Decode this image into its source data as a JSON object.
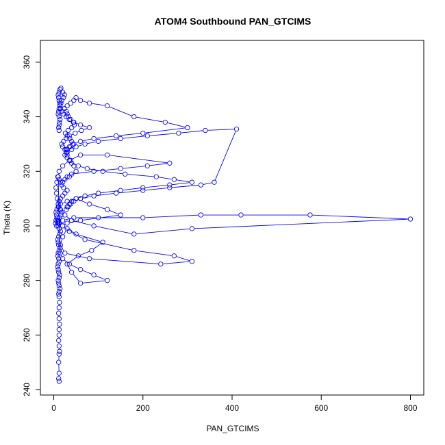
{
  "chart_data": {
    "type": "scatter",
    "title": "ATOM4 Southbound PAN_GTCIMS",
    "xlabel": "PAN_GTCIMS",
    "ylabel": "Theta (K)",
    "xlim": [
      -30,
      830
    ],
    "ylim": [
      238,
      368
    ],
    "x_ticks": [
      0,
      200,
      400,
      600,
      800
    ],
    "y_ticks": [
      240,
      260,
      280,
      300,
      320,
      340,
      360
    ],
    "x_tick_labels": [
      "0",
      "200",
      "400",
      "600",
      "800"
    ],
    "y_tick_labels": [
      "240",
      "260",
      "280",
      "300",
      "320",
      "340",
      "360"
    ],
    "grid": false,
    "legend": "none",
    "series_color": "#0000ff",
    "series": [
      {
        "style": "points-and-lines",
        "x": [
          12,
          11,
          12,
          11,
          12,
          13,
          12,
          11,
          12,
          12,
          13,
          12,
          11,
          12,
          13,
          12,
          11,
          12,
          14,
          12,
          11,
          10,
          12,
          13,
          11,
          10,
          9,
          10,
          12,
          11,
          9,
          10,
          12,
          14,
          11,
          10,
          9,
          11,
          13,
          15,
          12,
          10,
          9,
          11,
          13,
          16,
          18,
          14,
          11,
          10,
          12,
          15,
          20,
          25,
          30,
          22,
          18,
          15,
          12,
          10,
          14,
          20,
          35,
          60,
          90,
          120,
          60,
          40,
          30,
          55,
          85,
          110,
          50,
          30,
          20,
          15,
          25,
          80,
          240,
          310,
          270,
          180,
          70,
          35,
          20,
          12,
          10,
          8,
          6,
          5,
          7,
          10,
          15,
          30,
          50,
          80,
          120,
          150,
          60,
          30,
          20,
          12,
          9,
          7,
          5,
          4,
          6,
          10,
          20,
          45,
          100,
          200,
          330,
          420,
          575,
          800,
          310,
          180,
          90,
          40,
          25,
          15,
          10,
          8,
          6,
          5,
          7,
          9,
          12,
          20,
          35,
          60,
          120,
          260,
          210,
          150,
          90,
          40,
          30,
          25,
          20,
          35,
          50,
          45,
          38,
          30,
          28,
          35,
          42,
          40,
          36,
          30,
          26,
          32,
          40,
          46,
          44,
          38,
          33,
          30,
          28,
          24,
          30,
          38,
          45,
          50,
          60,
          80,
          120,
          180,
          250,
          300,
          200,
          140,
          90,
          60,
          45,
          38,
          30,
          28,
          25,
          30,
          35,
          40,
          55,
          75,
          110,
          160,
          230,
          270,
          310,
          260,
          200,
          150,
          100,
          70,
          50,
          40,
          35,
          30,
          28,
          32,
          38,
          45,
          60,
          90,
          140,
          200,
          260,
          330,
          360,
          410,
          340,
          280,
          210,
          150,
          100,
          70,
          50,
          40,
          30,
          25,
          20,
          18,
          22,
          28,
          35,
          48,
          62,
          80,
          60,
          45,
          35,
          28,
          22,
          18,
          15,
          14,
          13,
          12,
          11,
          10,
          12,
          14,
          16,
          20,
          24,
          22,
          18,
          16,
          14,
          12,
          11,
          10,
          12,
          14,
          13,
          12,
          11,
          12
        ],
        "y": [
          243,
          244,
          246,
          250,
          253,
          254,
          256,
          258,
          260,
          262,
          264,
          266,
          268,
          270,
          272,
          274,
          275,
          276,
          277,
          278,
          279,
          280,
          281,
          282,
          283,
          284,
          285,
          286,
          287,
          288,
          289,
          290,
          291,
          292,
          293,
          294,
          295,
          296,
          297,
          298,
          299,
          300,
          301,
          302,
          303,
          304,
          305,
          306,
          307,
          308,
          309,
          310,
          311,
          312,
          313,
          314,
          315,
          316,
          317,
          318,
          290,
          288,
          286,
          284,
          282,
          280,
          279,
          283,
          286,
          289,
          291,
          294,
          297,
          299,
          296,
          293,
          290,
          288,
          286,
          287,
          289,
          291,
          295,
          298,
          300,
          301,
          302,
          303,
          304,
          305,
          306,
          307,
          308,
          309,
          310,
          308,
          306,
          304,
          302,
          301,
          300,
          301,
          302,
          303,
          302,
          301,
          300,
          301,
          302,
          303,
          303,
          303,
          304,
          304,
          304,
          302.5,
          299,
          297,
          300,
          302,
          304,
          306,
          308,
          310,
          312,
          314,
          316,
          318,
          320,
          322,
          324,
          326,
          326,
          323,
          322,
          321,
          320,
          319,
          318,
          317,
          316,
          318,
          320,
          322,
          324,
          326,
          328,
          329,
          330,
          331,
          332,
          333,
          334,
          335,
          336,
          337,
          338,
          339,
          340,
          341,
          342,
          343,
          344,
          345,
          346,
          347,
          346,
          345,
          344,
          340,
          338,
          336,
          334,
          333,
          332,
          331,
          330,
          329,
          328,
          327,
          326,
          325,
          324,
          323,
          322,
          321,
          320,
          319,
          318,
          317,
          316,
          315,
          314,
          313,
          312,
          311,
          310,
          309,
          308,
          307,
          306,
          307,
          308,
          309,
          310,
          311,
          312,
          313,
          314,
          315,
          316,
          335.5,
          335,
          334,
          333,
          332,
          331,
          330,
          329,
          328,
          327,
          328,
          329,
          330,
          331,
          332,
          333,
          334,
          335,
          336,
          337,
          338,
          339,
          340,
          341,
          342,
          343,
          344,
          345,
          346,
          347,
          348,
          349,
          350,
          350.5,
          349,
          348,
          347,
          346,
          345,
          344,
          343,
          342,
          341,
          340,
          339,
          338,
          337,
          336,
          335
        ]
      }
    ]
  }
}
